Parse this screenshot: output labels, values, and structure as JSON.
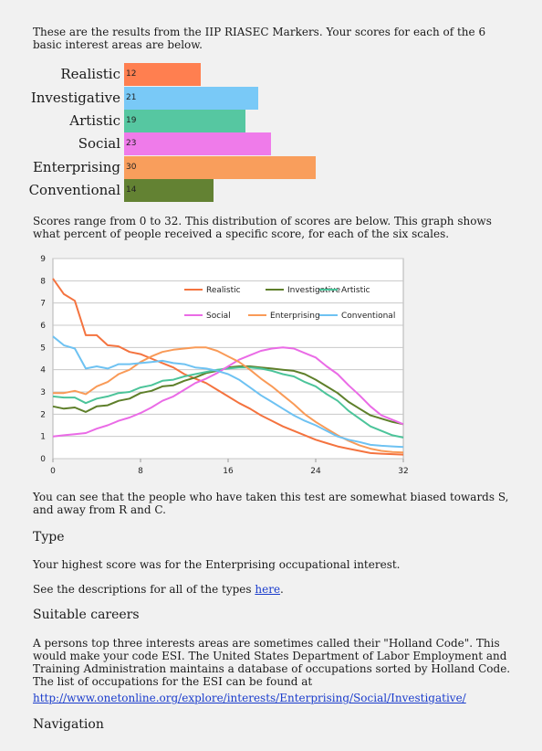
{
  "intro": "These are the results from the IIP RIASEC Markers. Your scores for each of the 6 basic interest areas are below.",
  "scores": [
    {
      "label": "Realistic",
      "value": 12,
      "color": "#ff7f50"
    },
    {
      "label": "Investigative",
      "value": 21,
      "color": "#79c9f7"
    },
    {
      "label": "Artistic",
      "value": 19,
      "color": "#56c7a1"
    },
    {
      "label": "Social",
      "value": 23,
      "color": "#ef7bea"
    },
    {
      "label": "Enterprising",
      "value": 30,
      "color": "#f99e5c"
    },
    {
      "label": "Conventional",
      "value": 14,
      "color": "#638233"
    }
  ],
  "range_text": "Scores range from 0 to 32. This distribution of scores are below. This graph shows what percent of people received a specific score, for each of the six scales.",
  "chart_data": {
    "type": "line",
    "xlim": [
      0,
      32
    ],
    "ylim": [
      0,
      9
    ],
    "xticks": [
      "0",
      "8",
      "16",
      "24",
      "32"
    ],
    "yticks": [
      "0",
      "1",
      "2",
      "3",
      "4",
      "5",
      "6",
      "7",
      "8",
      "9"
    ],
    "grid": true,
    "legend_position": "top-right",
    "x": [
      0,
      1,
      2,
      3,
      4,
      5,
      6,
      7,
      8,
      9,
      10,
      11,
      12,
      13,
      14,
      15,
      16,
      17,
      18,
      19,
      20,
      21,
      22,
      23,
      24,
      25,
      26,
      27,
      28,
      29,
      30,
      31,
      32
    ],
    "series": [
      {
        "name": "Realistic",
        "color": "#f4733f",
        "values": [
          8.1,
          7.4,
          7.1,
          5.55,
          5.55,
          5.1,
          5.05,
          4.8,
          4.7,
          4.5,
          4.3,
          4.1,
          3.8,
          3.6,
          3.4,
          3.1,
          2.8,
          2.5,
          2.25,
          1.95,
          1.7,
          1.45,
          1.25,
          1.05,
          0.85,
          0.7,
          0.55,
          0.45,
          0.35,
          0.25,
          0.22,
          0.2,
          0.18
        ]
      },
      {
        "name": "Investigative",
        "color": "#5e7f2a",
        "values": [
          2.35,
          2.25,
          2.3,
          2.1,
          2.35,
          2.4,
          2.6,
          2.7,
          2.95,
          3.05,
          3.25,
          3.3,
          3.5,
          3.65,
          3.85,
          3.95,
          4.1,
          4.15,
          4.15,
          4.1,
          4.05,
          4.0,
          3.95,
          3.8,
          3.55,
          3.25,
          2.95,
          2.55,
          2.25,
          1.95,
          1.8,
          1.65,
          1.55
        ]
      },
      {
        "name": "Artistic",
        "color": "#4cc49a",
        "values": [
          2.8,
          2.75,
          2.75,
          2.5,
          2.7,
          2.8,
          2.95,
          3.0,
          3.2,
          3.3,
          3.5,
          3.55,
          3.7,
          3.8,
          3.9,
          4.0,
          4.05,
          4.1,
          4.1,
          4.05,
          3.95,
          3.8,
          3.7,
          3.45,
          3.25,
          2.9,
          2.6,
          2.15,
          1.8,
          1.45,
          1.25,
          1.05,
          0.95
        ]
      },
      {
        "name": "Social",
        "color": "#ea6be6",
        "values": [
          1.0,
          1.05,
          1.1,
          1.15,
          1.35,
          1.5,
          1.7,
          1.85,
          2.05,
          2.3,
          2.6,
          2.8,
          3.1,
          3.4,
          3.6,
          3.85,
          4.15,
          4.45,
          4.65,
          4.85,
          4.95,
          5.0,
          4.95,
          4.75,
          4.55,
          4.15,
          3.8,
          3.3,
          2.85,
          2.35,
          1.95,
          1.75,
          1.55
        ]
      },
      {
        "name": "Enterprising",
        "color": "#f99a57",
        "values": [
          2.95,
          2.95,
          3.05,
          2.9,
          3.25,
          3.45,
          3.8,
          4.0,
          4.35,
          4.6,
          4.8,
          4.9,
          4.95,
          5.0,
          5.0,
          4.85,
          4.6,
          4.35,
          4.0,
          3.6,
          3.25,
          2.85,
          2.45,
          2.0,
          1.65,
          1.35,
          1.05,
          0.8,
          0.6,
          0.45,
          0.35,
          0.3,
          0.28
        ]
      },
      {
        "name": "Conventional",
        "color": "#6ec2f2",
        "values": [
          5.5,
          5.1,
          4.95,
          4.05,
          4.15,
          4.05,
          4.25,
          4.25,
          4.3,
          4.35,
          4.4,
          4.3,
          4.25,
          4.1,
          4.05,
          3.95,
          3.8,
          3.55,
          3.2,
          2.85,
          2.55,
          2.25,
          1.95,
          1.7,
          1.5,
          1.25,
          1.0,
          0.85,
          0.75,
          0.62,
          0.58,
          0.55,
          0.52
        ]
      }
    ]
  },
  "bias_text": "You can see that the people who have taken this test are somewhat biased towards S, and away from R and C.",
  "type_heading": "Type",
  "highest_text": "Your highest score was for the Enterprising occupational interest.",
  "descriptions_prefix": "See the descriptions for all of the types ",
  "descriptions_link": "here",
  "descriptions_suffix": ".",
  "careers_heading": "Suitable careers",
  "careers_text": "A persons top three interests areas are sometimes called their \"Holland Code\". This would make your code ESI. The United States Department of Labor Employment and Training Administration maintains a database of occupations sorted by Holland Code. The list of occupations for the ESI can be found at",
  "careers_link": "http://www.onetonline.org/explore/interests/Enterprising/Social/Investigative/",
  "navigation_heading": "Navigation"
}
